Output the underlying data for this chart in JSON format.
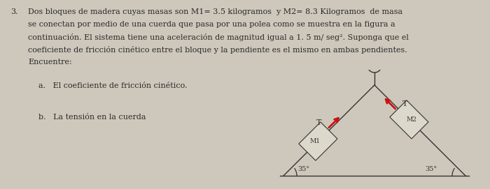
{
  "background_color": "#cec8bc",
  "text_color": "#2a2a2a",
  "problem_number": "3.",
  "line1": "Dos bloques de madera cuyas masas son M1= 3.5 kilogramos  y M2= 8.3 Kilogramos  de masa",
  "line2": "se conectan por medio de una cuerda que pasa por una polea como se muestra en la figura a",
  "line3": "continuación. El sistema tiene una aceleración de magnitud igual a 1. 5 m/ seg². Suponga que el",
  "line4": "coeficiente de fricción cinético entre el bloque y la pendiente es el mismo en ambas pendientes.",
  "line5": "Encuentre:",
  "part_a": "a.   El coeficiente de fricción cinético.",
  "part_b": "b.   La tensión en la cuerda",
  "angle_label": "35°",
  "label_m1": "M1",
  "label_m2": "M2",
  "label_t": "T",
  "arrow_color": "#cc1111",
  "line_color": "#333333",
  "block_color": "#ddd8cc",
  "fs_text": 8.0,
  "fs_small": 7.5
}
